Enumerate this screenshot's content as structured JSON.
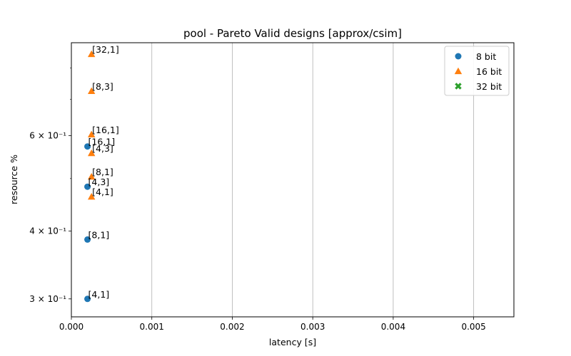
{
  "chart_data": {
    "type": "scatter",
    "title": "pool - Pareto Valid designs [approx/csim]",
    "xlabel": "latency [s]",
    "ylabel": "resource %",
    "x_scale": "linear",
    "y_scale": "log",
    "xlim": [
      0.0,
      0.0055
    ],
    "ylim": [
      0.278,
      0.89
    ],
    "x_ticks": [
      {
        "value": 0.0,
        "label": "0.000"
      },
      {
        "value": 0.001,
        "label": "0.001"
      },
      {
        "value": 0.002,
        "label": "0.002"
      },
      {
        "value": 0.003,
        "label": "0.003"
      },
      {
        "value": 0.004,
        "label": "0.004"
      },
      {
        "value": 0.005,
        "label": "0.005"
      }
    ],
    "y_major_ticks": [
      {
        "value": 0.3,
        "label": "3 × 10⁻¹"
      },
      {
        "value": 0.4,
        "label": "4 × 10⁻¹"
      },
      {
        "value": 0.6,
        "label": "6 × 10⁻¹"
      }
    ],
    "y_minor_ticks": [
      0.5,
      0.7,
      0.8
    ],
    "grid": "vertical",
    "legend_position": "top-right",
    "series": [
      {
        "name": "8 bit",
        "marker": "circle",
        "color": "#1f77b4",
        "points": [
          {
            "x": 0.0002,
            "y": 0.573,
            "label": "[16,1]"
          },
          {
            "x": 0.0002,
            "y": 0.483,
            "label": "[4,3]"
          },
          {
            "x": 0.0002,
            "y": 0.386,
            "label": "[8,1]"
          },
          {
            "x": 0.0002,
            "y": 0.3,
            "label": "[4,1]"
          }
        ]
      },
      {
        "name": "16 bit",
        "marker": "triangle",
        "color": "#ff7f0e",
        "points": [
          {
            "x": 0.00025,
            "y": 0.848,
            "label": "[32,1]"
          },
          {
            "x": 0.00025,
            "y": 0.725,
            "label": "[8,3]"
          },
          {
            "x": 0.00025,
            "y": 0.603,
            "label": "[16,1]"
          },
          {
            "x": 0.00025,
            "y": 0.557,
            "label": "[4,3]"
          },
          {
            "x": 0.00025,
            "y": 0.504,
            "label": "[8,1]"
          },
          {
            "x": 0.00025,
            "y": 0.463,
            "label": "[4,1]"
          }
        ]
      },
      {
        "name": "32 bit",
        "marker": "x",
        "color": "#2ca02c",
        "points": []
      }
    ]
  }
}
